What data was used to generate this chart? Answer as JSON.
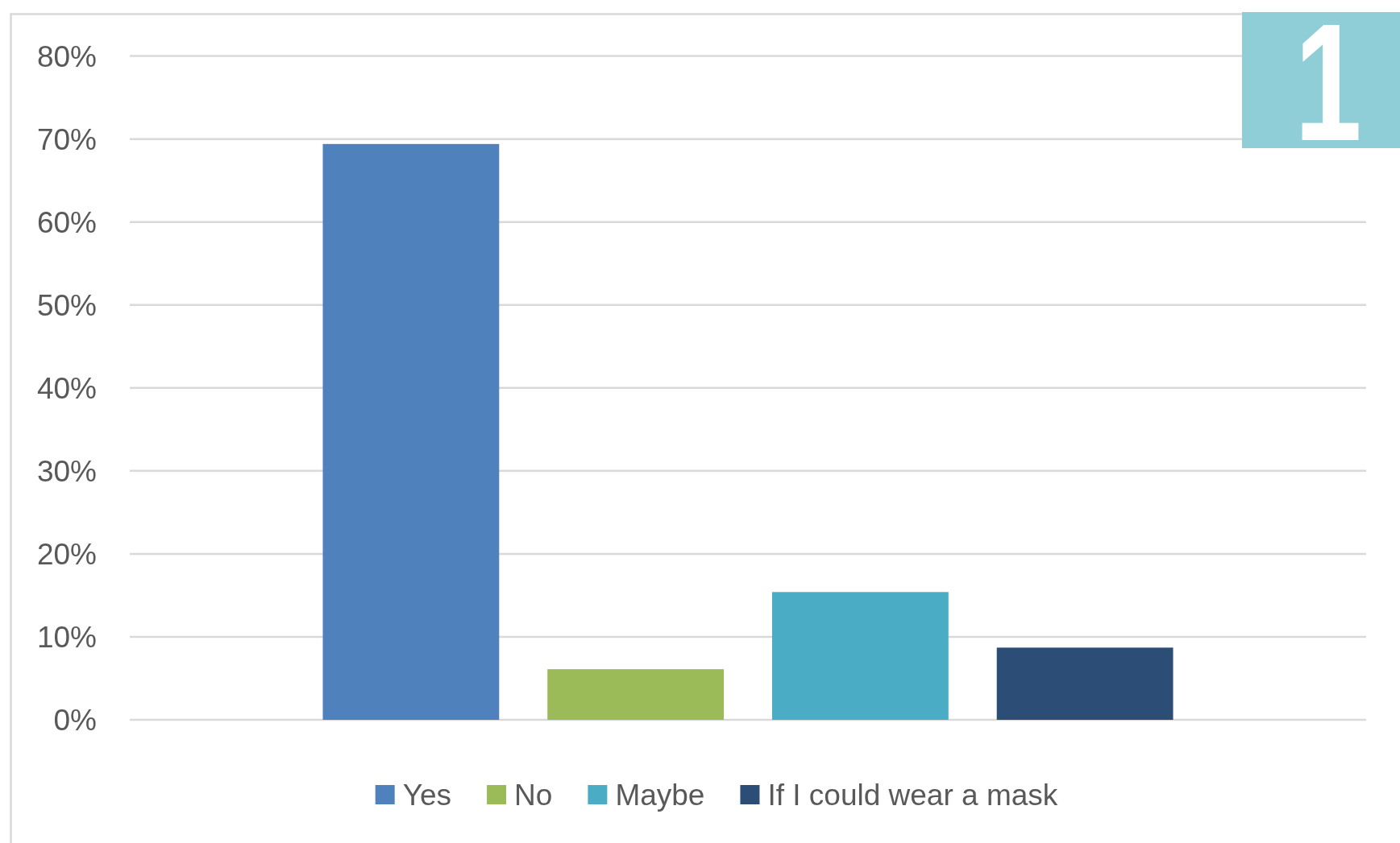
{
  "chart_data": {
    "type": "bar",
    "categories": [
      null
    ],
    "series": [
      {
        "name": "Yes",
        "color": "#4f81bd",
        "values": [
          69.4
        ]
      },
      {
        "name": "No",
        "color": "#9bbb59",
        "values": [
          6.1
        ]
      },
      {
        "name": "Maybe",
        "color": "#4bacc6",
        "values": [
          15.4
        ]
      },
      {
        "name": "If I could wear a mask",
        "color": "#2c4d75",
        "values": [
          8.7
        ]
      }
    ],
    "ylim": [
      0,
      80
    ],
    "yticks": [
      {
        "value": 0,
        "label": "0%"
      },
      {
        "value": 10,
        "label": "10%"
      },
      {
        "value": 20,
        "label": "20%"
      },
      {
        "value": 30,
        "label": "30%"
      },
      {
        "value": 40,
        "label": "40%"
      },
      {
        "value": 50,
        "label": "50%"
      },
      {
        "value": 60,
        "label": "60%"
      },
      {
        "value": 70,
        "label": "70%"
      },
      {
        "value": 80,
        "label": "80%"
      }
    ],
    "grid": "y",
    "legend": "bottom",
    "annotations": [
      "1"
    ]
  }
}
